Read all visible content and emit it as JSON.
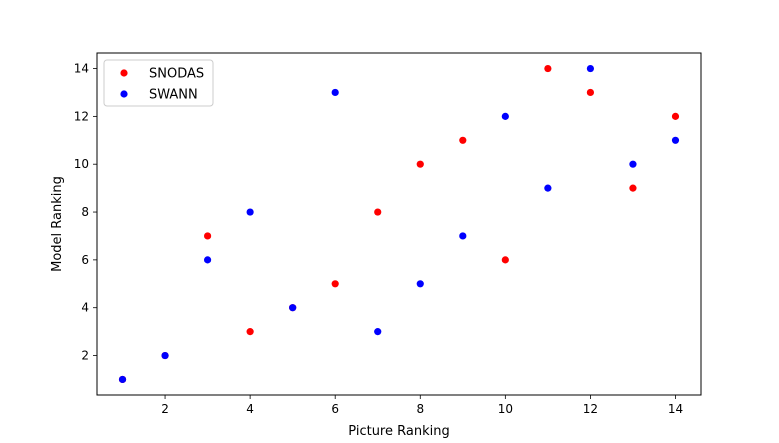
{
  "chart_data": {
    "type": "scatter",
    "title": "",
    "xlabel": "Picture Ranking",
    "ylabel": "Model Ranking",
    "xlim": [
      0.4,
      14.6
    ],
    "ylim": [
      0.35,
      14.65
    ],
    "xticks": [
      2,
      4,
      6,
      8,
      10,
      12,
      14
    ],
    "yticks": [
      2,
      4,
      6,
      8,
      10,
      12,
      14
    ],
    "grid": false,
    "legend_position": "top-left",
    "series": [
      {
        "name": "SNODAS",
        "color": "#ff0000",
        "x": [
          1,
          2,
          3,
          4,
          5,
          6,
          7,
          8,
          9,
          10,
          11,
          12,
          13,
          14
        ],
        "y": [
          1,
          2,
          7,
          3,
          4,
          5,
          8,
          10,
          11,
          6,
          14,
          13,
          9,
          12
        ]
      },
      {
        "name": "SWANN",
        "color": "#0000ff",
        "x": [
          1,
          2,
          3,
          4,
          5,
          6,
          7,
          8,
          9,
          10,
          11,
          12,
          13,
          14
        ],
        "y": [
          1,
          2,
          6,
          8,
          4,
          13,
          3,
          5,
          7,
          12,
          9,
          14,
          10,
          11
        ]
      }
    ]
  }
}
